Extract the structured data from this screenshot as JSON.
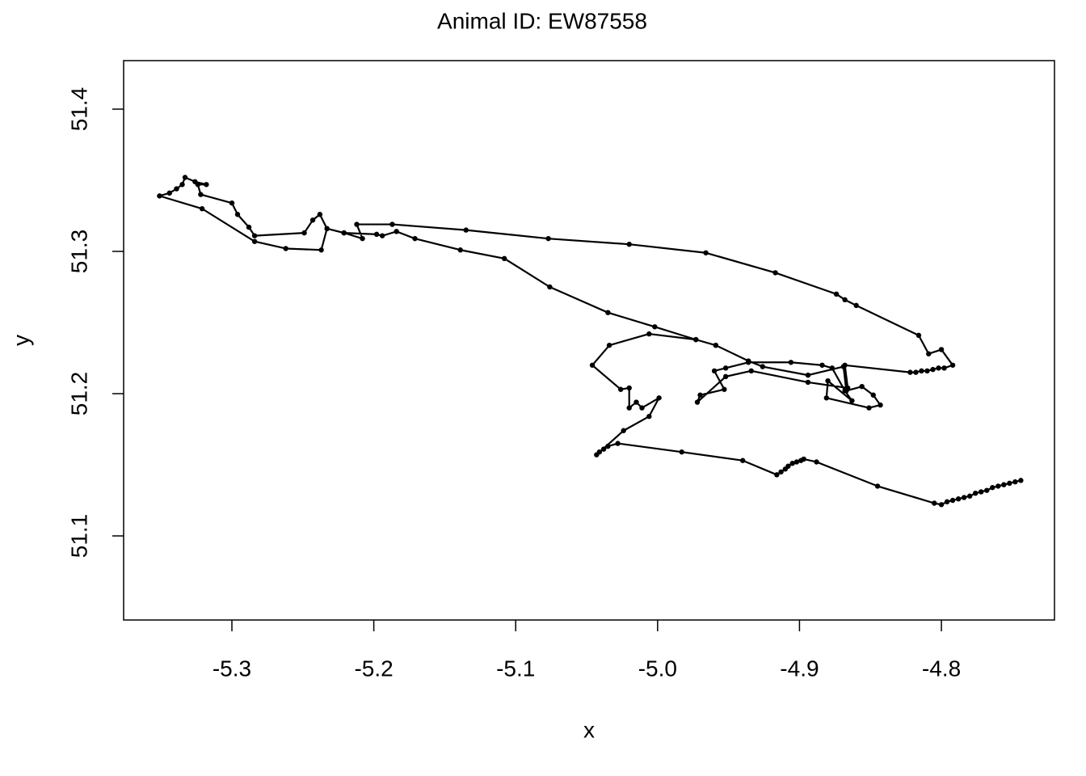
{
  "chart_data": {
    "type": "line",
    "title": "Animal ID: EW87558",
    "x_label": "x",
    "y_label": "y",
    "color": "#000000",
    "markers": true,
    "grid": false,
    "xlim": [
      -5.3763,
      -4.7203
    ],
    "ylim": [
      51.0409,
      51.4341
    ],
    "xticks": [
      -5.3,
      -5.2,
      -5.1,
      {
        "value": -5,
        "label": "-5.0"
      },
      -4.9,
      -4.8
    ],
    "yticks": [
      51.1,
      51.2,
      51.3,
      51.4
    ],
    "x": [
      -4.744,
      -4.748,
      -4.752,
      -4.756,
      -4.76,
      -4.764,
      -4.768,
      -4.772,
      -4.776,
      -4.78,
      -4.784,
      -4.788,
      -4.792,
      -4.796,
      -4.8,
      -4.805,
      -4.845,
      -4.888,
      -4.897,
      -4.899,
      -4.902,
      -4.905,
      -4.908,
      -4.91,
      -4.913,
      -4.916,
      -4.94,
      -4.983,
      -5.028,
      -5.035,
      -5.038,
      -5.041,
      -5.043,
      -5.024,
      -5.006,
      -4.999,
      -5.011,
      -5.015,
      -5.02,
      -5.02,
      -5.026,
      -5.046,
      -5.034,
      -5.006,
      -4.973,
      -4.959,
      -4.936,
      -4.926,
      -4.894,
      -4.869,
      -4.867,
      -4.856,
      -4.848,
      -4.843,
      -4.851,
      -4.881,
      -4.88,
      -4.863,
      -4.868,
      -4.877,
      -4.884,
      -4.906,
      -4.936,
      -4.952,
      -4.96,
      -4.953,
      -4.97,
      -4.972,
      -4.952,
      -4.934,
      -4.894,
      -4.866,
      -4.868,
      -4.822,
      -4.818,
      -4.814,
      -4.81,
      -4.806,
      -4.802,
      -4.798,
      -4.792,
      -4.8,
      -4.809,
      -4.816,
      -4.86,
      -4.868,
      -4.874,
      -4.917,
      -4.966,
      -5.02,
      -5.077,
      -5.135,
      -5.187,
      -5.212,
      -5.208,
      -5.221,
      -5.233,
      -5.237,
      -5.262,
      -5.284,
      -5.321,
      -5.351,
      -5.344,
      -5.339,
      -5.335,
      -5.333,
      -5.326,
      -5.318,
      -5.324,
      -5.322,
      -5.3,
      -5.296,
      -5.288,
      -5.284,
      -5.249,
      -5.243,
      -5.238,
      -5.233,
      -5.221,
      -5.198,
      -5.194,
      -5.184,
      -5.171,
      -5.139,
      -5.108,
      -5.076,
      -5.035,
      -5.002,
      -4.973,
      -4.959
    ],
    "values": [
      51.139,
      51.138,
      51.137,
      51.136,
      51.135,
      51.134,
      51.132,
      51.131,
      51.13,
      51.128,
      51.127,
      51.126,
      51.125,
      51.124,
      51.122,
      51.123,
      51.135,
      51.152,
      51.154,
      51.153,
      51.152,
      51.151,
      51.149,
      51.147,
      51.145,
      51.143,
      51.153,
      51.159,
      51.165,
      51.163,
      51.161,
      51.159,
      51.157,
      51.174,
      51.184,
      51.197,
      51.19,
      51.194,
      51.19,
      51.204,
      51.203,
      51.22,
      51.234,
      51.242,
      51.238,
      51.234,
      51.223,
      51.219,
      51.213,
      51.219,
      51.202,
      51.205,
      51.199,
      51.192,
      51.19,
      51.197,
      51.209,
      51.195,
      51.202,
      51.218,
      51.22,
      51.222,
      51.222,
      51.218,
      51.216,
      51.203,
      51.199,
      51.194,
      51.212,
      51.216,
      51.208,
      51.204,
      51.22,
      51.215,
      51.215,
      51.216,
      51.216,
      51.217,
      51.218,
      51.218,
      51.22,
      51.231,
      51.228,
      51.241,
      51.262,
      51.266,
      51.27,
      51.285,
      51.299,
      51.305,
      51.309,
      51.315,
      51.319,
      51.319,
      51.309,
      51.313,
      51.316,
      51.301,
      51.302,
      51.307,
      51.33,
      51.339,
      51.341,
      51.344,
      51.347,
      51.352,
      51.349,
      51.347,
      51.347,
      51.34,
      51.334,
      51.326,
      51.317,
      51.311,
      51.313,
      51.322,
      51.326,
      51.316,
      51.313,
      51.312,
      51.311,
      51.314,
      51.309,
      51.301,
      51.295,
      51.275,
      51.257,
      51.247,
      51.238,
      51.234
    ]
  }
}
